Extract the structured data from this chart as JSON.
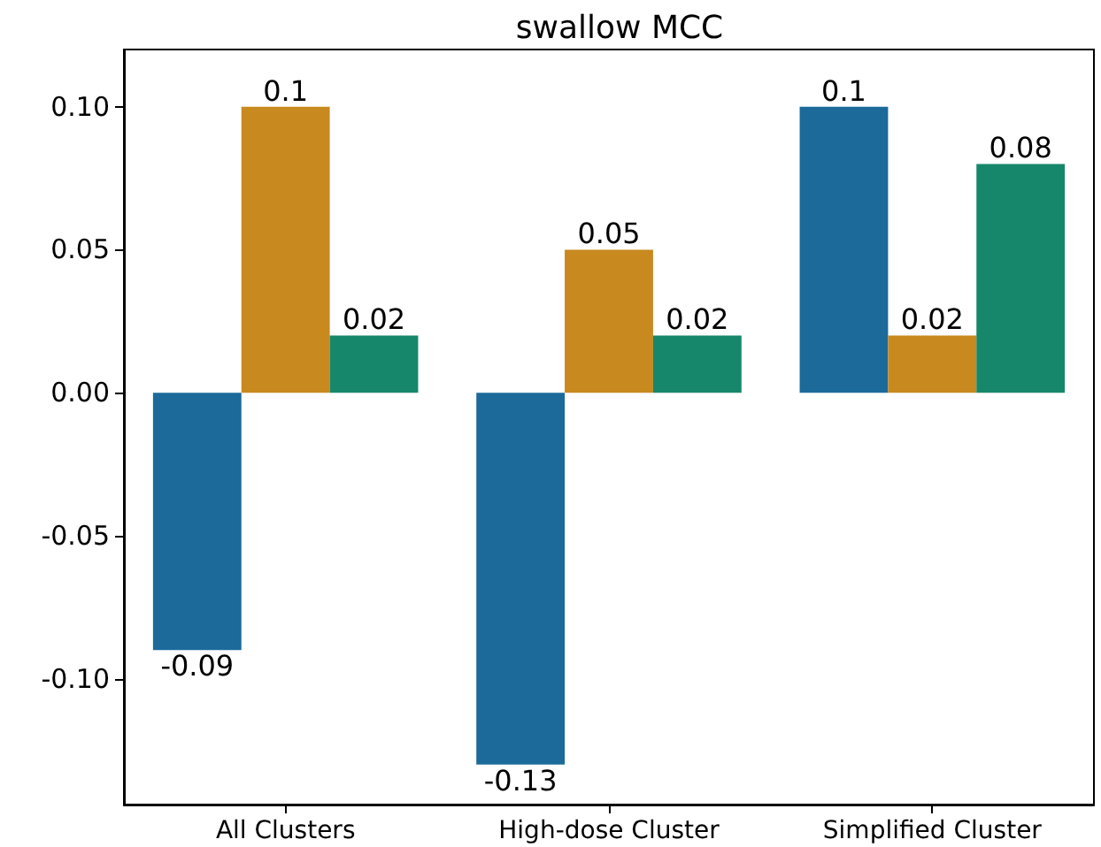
{
  "chart_data": {
    "type": "bar",
    "title": "swallow MCC",
    "categories": [
      "All Clusters",
      "High-dose Cluster",
      "Simplified Cluster"
    ],
    "series": [
      {
        "color": "#1b6a9a",
        "values": [
          -0.09,
          -0.13,
          0.1
        ]
      },
      {
        "color": "#c8891e",
        "values": [
          0.1,
          0.05,
          0.02
        ]
      },
      {
        "color": "#16876a",
        "values": [
          0.02,
          0.02,
          0.08
        ]
      }
    ],
    "ylim": [
      -0.144,
      0.12
    ],
    "yticks": [
      {
        "value": -0.1,
        "label": "-0.10"
      },
      {
        "value": -0.05,
        "label": "-0.05"
      },
      {
        "value": 0,
        "label": "0.00"
      },
      {
        "value": 0.05,
        "label": "0.05"
      },
      {
        "value": 0.1,
        "label": "0.10"
      }
    ],
    "data_labels": true,
    "grid": false
  }
}
